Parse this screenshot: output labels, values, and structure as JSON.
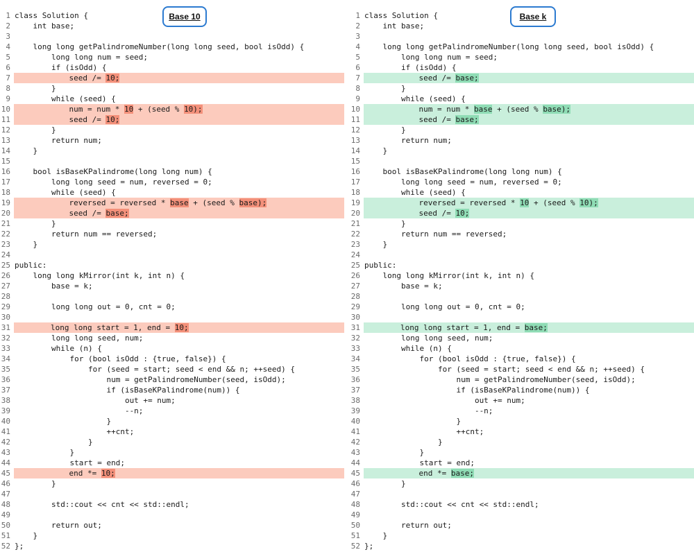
{
  "colors": {
    "removed_line_bg": "#fccbbd",
    "removed_token_bg": "#f3907a",
    "added_line_bg": "#c9efdc",
    "added_token_bg": "#8fdcb5",
    "tag_border": "#2b7ad0"
  },
  "panes": [
    {
      "label": "Base 10",
      "highlight": "red",
      "lines": [
        {
          "n": "1",
          "segs": [
            [
              "class Solution {",
              0
            ]
          ]
        },
        {
          "n": "2",
          "segs": [
            [
              "    int base;",
              0
            ]
          ]
        },
        {
          "n": "3",
          "segs": [
            [
              "",
              0
            ]
          ]
        },
        {
          "n": "4",
          "segs": [
            [
              "    long long getPalindromeNumber(long long seed, bool isOdd) {",
              0
            ]
          ]
        },
        {
          "n": "5",
          "segs": [
            [
              "        long long num = seed;",
              0
            ]
          ]
        },
        {
          "n": "6",
          "segs": [
            [
              "        if (isOdd) {",
              0
            ]
          ]
        },
        {
          "n": "7",
          "hl": true,
          "segs": [
            [
              "            seed /= ",
              0
            ],
            [
              "10;",
              1
            ]
          ]
        },
        {
          "n": "8",
          "segs": [
            [
              "        }",
              0
            ]
          ]
        },
        {
          "n": "9",
          "segs": [
            [
              "        while (seed) {",
              0
            ]
          ]
        },
        {
          "n": "10",
          "hl": true,
          "segs": [
            [
              "            num = num * ",
              0
            ],
            [
              "10",
              1
            ],
            [
              " + (seed % ",
              0
            ],
            [
              "10);",
              1
            ]
          ]
        },
        {
          "n": "11",
          "hl": true,
          "segs": [
            [
              "            seed /= ",
              0
            ],
            [
              "10;",
              1
            ]
          ]
        },
        {
          "n": "12",
          "segs": [
            [
              "        }",
              0
            ]
          ]
        },
        {
          "n": "13",
          "segs": [
            [
              "        return num;",
              0
            ]
          ]
        },
        {
          "n": "14",
          "segs": [
            [
              "    }",
              0
            ]
          ]
        },
        {
          "n": "15",
          "segs": [
            [
              "",
              0
            ]
          ]
        },
        {
          "n": "16",
          "segs": [
            [
              "    bool isBaseKPalindrome(long long num) {",
              0
            ]
          ]
        },
        {
          "n": "17",
          "segs": [
            [
              "        long long seed = num, reversed = 0;",
              0
            ]
          ]
        },
        {
          "n": "18",
          "segs": [
            [
              "        while (seed) {",
              0
            ]
          ]
        },
        {
          "n": "19",
          "hl": true,
          "segs": [
            [
              "            reversed = reversed * ",
              0
            ],
            [
              "base",
              1
            ],
            [
              " + (seed % ",
              0
            ],
            [
              "base);",
              1
            ]
          ]
        },
        {
          "n": "20",
          "hl": true,
          "segs": [
            [
              "            seed /= ",
              0
            ],
            [
              "base;",
              1
            ]
          ]
        },
        {
          "n": "21",
          "segs": [
            [
              "        }",
              0
            ]
          ]
        },
        {
          "n": "22",
          "segs": [
            [
              "        return num == reversed;",
              0
            ]
          ]
        },
        {
          "n": "23",
          "segs": [
            [
              "    }",
              0
            ]
          ]
        },
        {
          "n": "24",
          "segs": [
            [
              "",
              0
            ]
          ]
        },
        {
          "n": "25",
          "segs": [
            [
              "public:",
              0
            ]
          ]
        },
        {
          "n": "26",
          "segs": [
            [
              "    long long kMirror(int k, int n) {",
              0
            ]
          ]
        },
        {
          "n": "27",
          "segs": [
            [
              "        base = k;",
              0
            ]
          ]
        },
        {
          "n": "28",
          "segs": [
            [
              "",
              0
            ]
          ]
        },
        {
          "n": "29",
          "segs": [
            [
              "        long long out = 0, cnt = 0;",
              0
            ]
          ]
        },
        {
          "n": "30",
          "segs": [
            [
              "",
              0
            ]
          ]
        },
        {
          "n": "31",
          "hl": true,
          "segs": [
            [
              "        long long start = 1, end = ",
              0
            ],
            [
              "10;",
              1
            ]
          ]
        },
        {
          "n": "32",
          "segs": [
            [
              "        long long seed, num;",
              0
            ]
          ]
        },
        {
          "n": "33",
          "segs": [
            [
              "        while (n) {",
              0
            ]
          ]
        },
        {
          "n": "34",
          "segs": [
            [
              "            for (bool isOdd : {true, false}) {",
              0
            ]
          ]
        },
        {
          "n": "35",
          "segs": [
            [
              "                for (seed = start; seed < end && n; ++seed) {",
              0
            ]
          ]
        },
        {
          "n": "36",
          "segs": [
            [
              "                    num = getPalindromeNumber(seed, isOdd);",
              0
            ]
          ]
        },
        {
          "n": "37",
          "segs": [
            [
              "                    if (isBaseKPalindrome(num)) {",
              0
            ]
          ]
        },
        {
          "n": "38",
          "segs": [
            [
              "                        out += num;",
              0
            ]
          ]
        },
        {
          "n": "39",
          "segs": [
            [
              "                        --n;",
              0
            ]
          ]
        },
        {
          "n": "40",
          "segs": [
            [
              "                    }",
              0
            ]
          ]
        },
        {
          "n": "41",
          "segs": [
            [
              "                    ++cnt;",
              0
            ]
          ]
        },
        {
          "n": "42",
          "segs": [
            [
              "                }",
              0
            ]
          ]
        },
        {
          "n": "43",
          "segs": [
            [
              "            }",
              0
            ]
          ]
        },
        {
          "n": "44",
          "segs": [
            [
              "            start = end;",
              0
            ]
          ]
        },
        {
          "n": "45",
          "hl": true,
          "segs": [
            [
              "            end *= ",
              0
            ],
            [
              "10;",
              1
            ]
          ]
        },
        {
          "n": "46",
          "segs": [
            [
              "        }",
              0
            ]
          ]
        },
        {
          "n": "47",
          "segs": [
            [
              "",
              0
            ]
          ]
        },
        {
          "n": "48",
          "segs": [
            [
              "        std::cout << cnt << std::endl;",
              0
            ]
          ]
        },
        {
          "n": "49",
          "segs": [
            [
              "",
              0
            ]
          ]
        },
        {
          "n": "50",
          "segs": [
            [
              "        return out;",
              0
            ]
          ]
        },
        {
          "n": "51",
          "segs": [
            [
              "    }",
              0
            ]
          ]
        },
        {
          "n": "52",
          "segs": [
            [
              "};",
              0
            ]
          ]
        }
      ]
    },
    {
      "label": "Base k",
      "highlight": "green",
      "lines": [
        {
          "n": "1",
          "segs": [
            [
              "class Solution {",
              0
            ]
          ]
        },
        {
          "n": "2",
          "segs": [
            [
              "    int base;",
              0
            ]
          ]
        },
        {
          "n": "3",
          "segs": [
            [
              "",
              0
            ]
          ]
        },
        {
          "n": "4",
          "segs": [
            [
              "    long long getPalindromeNumber(long long seed, bool isOdd) {",
              0
            ]
          ]
        },
        {
          "n": "5",
          "segs": [
            [
              "        long long num = seed;",
              0
            ]
          ]
        },
        {
          "n": "6",
          "segs": [
            [
              "        if (isOdd) {",
              0
            ]
          ]
        },
        {
          "n": "7",
          "hl": true,
          "segs": [
            [
              "            seed /= ",
              0
            ],
            [
              "base;",
              1
            ]
          ]
        },
        {
          "n": "8",
          "segs": [
            [
              "        }",
              0
            ]
          ]
        },
        {
          "n": "9",
          "segs": [
            [
              "        while (seed) {",
              0
            ]
          ]
        },
        {
          "n": "10",
          "hl": true,
          "segs": [
            [
              "            num = num * ",
              0
            ],
            [
              "base",
              1
            ],
            [
              " + (seed % ",
              0
            ],
            [
              "base);",
              1
            ]
          ]
        },
        {
          "n": "11",
          "hl": true,
          "segs": [
            [
              "            seed /= ",
              0
            ],
            [
              "base;",
              1
            ]
          ]
        },
        {
          "n": "12",
          "segs": [
            [
              "        }",
              0
            ]
          ]
        },
        {
          "n": "13",
          "segs": [
            [
              "        return num;",
              0
            ]
          ]
        },
        {
          "n": "14",
          "segs": [
            [
              "    }",
              0
            ]
          ]
        },
        {
          "n": "15",
          "segs": [
            [
              "",
              0
            ]
          ]
        },
        {
          "n": "16",
          "segs": [
            [
              "    bool isBaseKPalindrome(long long num) {",
              0
            ]
          ]
        },
        {
          "n": "17",
          "segs": [
            [
              "        long long seed = num, reversed = 0;",
              0
            ]
          ]
        },
        {
          "n": "18",
          "segs": [
            [
              "        while (seed) {",
              0
            ]
          ]
        },
        {
          "n": "19",
          "hl": true,
          "segs": [
            [
              "            reversed = reversed * ",
              0
            ],
            [
              "10",
              1
            ],
            [
              " + (seed % ",
              0
            ],
            [
              "10);",
              1
            ]
          ]
        },
        {
          "n": "20",
          "hl": true,
          "segs": [
            [
              "            seed /= ",
              0
            ],
            [
              "10;",
              1
            ]
          ]
        },
        {
          "n": "21",
          "segs": [
            [
              "        }",
              0
            ]
          ]
        },
        {
          "n": "22",
          "segs": [
            [
              "        return num == reversed;",
              0
            ]
          ]
        },
        {
          "n": "23",
          "segs": [
            [
              "    }",
              0
            ]
          ]
        },
        {
          "n": "24",
          "segs": [
            [
              "",
              0
            ]
          ]
        },
        {
          "n": "25",
          "segs": [
            [
              "public:",
              0
            ]
          ]
        },
        {
          "n": "26",
          "segs": [
            [
              "    long long kMirror(int k, int n) {",
              0
            ]
          ]
        },
        {
          "n": "27",
          "segs": [
            [
              "        base = k;",
              0
            ]
          ]
        },
        {
          "n": "28",
          "segs": [
            [
              "",
              0
            ]
          ]
        },
        {
          "n": "29",
          "segs": [
            [
              "        long long out = 0, cnt = 0;",
              0
            ]
          ]
        },
        {
          "n": "30",
          "segs": [
            [
              "",
              0
            ]
          ]
        },
        {
          "n": "31",
          "hl": true,
          "segs": [
            [
              "        long long start = 1, end = ",
              0
            ],
            [
              "base;",
              1
            ]
          ]
        },
        {
          "n": "32",
          "segs": [
            [
              "        long long seed, num;",
              0
            ]
          ]
        },
        {
          "n": "33",
          "segs": [
            [
              "        while (n) {",
              0
            ]
          ]
        },
        {
          "n": "34",
          "segs": [
            [
              "            for (bool isOdd : {true, false}) {",
              0
            ]
          ]
        },
        {
          "n": "35",
          "segs": [
            [
              "                for (seed = start; seed < end && n; ++seed) {",
              0
            ]
          ]
        },
        {
          "n": "36",
          "segs": [
            [
              "                    num = getPalindromeNumber(seed, isOdd);",
              0
            ]
          ]
        },
        {
          "n": "37",
          "segs": [
            [
              "                    if (isBaseKPalindrome(num)) {",
              0
            ]
          ]
        },
        {
          "n": "38",
          "segs": [
            [
              "                        out += num;",
              0
            ]
          ]
        },
        {
          "n": "39",
          "segs": [
            [
              "                        --n;",
              0
            ]
          ]
        },
        {
          "n": "40",
          "segs": [
            [
              "                    }",
              0
            ]
          ]
        },
        {
          "n": "41",
          "segs": [
            [
              "                    ++cnt;",
              0
            ]
          ]
        },
        {
          "n": "42",
          "segs": [
            [
              "                }",
              0
            ]
          ]
        },
        {
          "n": "43",
          "segs": [
            [
              "            }",
              0
            ]
          ]
        },
        {
          "n": "44",
          "segs": [
            [
              "            start = end;",
              0
            ]
          ]
        },
        {
          "n": "45",
          "hl": true,
          "segs": [
            [
              "            end *= ",
              0
            ],
            [
              "base;",
              1
            ]
          ]
        },
        {
          "n": "46",
          "segs": [
            [
              "        }",
              0
            ]
          ]
        },
        {
          "n": "47",
          "segs": [
            [
              "",
              0
            ]
          ]
        },
        {
          "n": "48",
          "segs": [
            [
              "        std::cout << cnt << std::endl;",
              0
            ]
          ]
        },
        {
          "n": "49",
          "segs": [
            [
              "",
              0
            ]
          ]
        },
        {
          "n": "50",
          "segs": [
            [
              "        return out;",
              0
            ]
          ]
        },
        {
          "n": "51",
          "segs": [
            [
              "    }",
              0
            ]
          ]
        },
        {
          "n": "52",
          "segs": [
            [
              "};",
              0
            ]
          ]
        }
      ]
    }
  ]
}
